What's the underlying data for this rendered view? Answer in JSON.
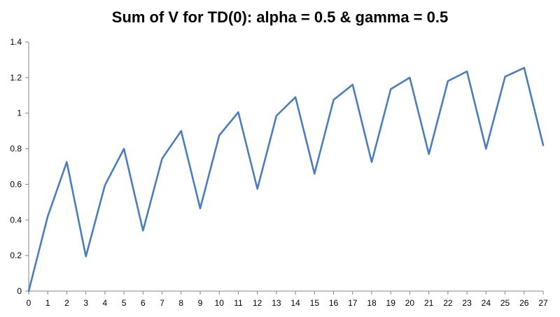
{
  "chart_data": {
    "type": "line",
    "title": "Sum of V for TD(0): alpha = 0.5 & gamma = 0.5",
    "xlabel": "",
    "ylabel": "",
    "x": [
      0,
      1,
      2,
      3,
      4,
      5,
      6,
      7,
      8,
      9,
      10,
      11,
      12,
      13,
      14,
      15,
      16,
      17,
      18,
      19,
      20,
      21,
      22,
      23,
      24,
      25,
      26,
      27
    ],
    "series": [
      {
        "values": [
          0,
          0.42,
          0.725,
          0.195,
          0.595,
          0.8,
          0.34,
          0.745,
          0.9,
          0.465,
          0.875,
          1.005,
          0.575,
          0.985,
          1.09,
          0.66,
          1.075,
          1.16,
          0.725,
          1.135,
          1.2,
          0.77,
          1.18,
          1.235,
          0.8,
          1.205,
          1.255,
          0.82
        ],
        "color": "#4a7ebb"
      }
    ],
    "ylim": [
      0,
      1.4
    ],
    "xlim": [
      0,
      27
    ],
    "y_ticks": [
      "0",
      "0.2",
      "0.4",
      "0.6",
      "0.8",
      "1",
      "1.2",
      "1.4"
    ],
    "x_ticks": [
      "0",
      "1",
      "2",
      "3",
      "4",
      "5",
      "6",
      "7",
      "8",
      "9",
      "10",
      "11",
      "12",
      "13",
      "14",
      "15",
      "16",
      "17",
      "18",
      "19",
      "20",
      "21",
      "22",
      "23",
      "24",
      "25",
      "26",
      "27"
    ],
    "grid": false,
    "legend": "none"
  }
}
